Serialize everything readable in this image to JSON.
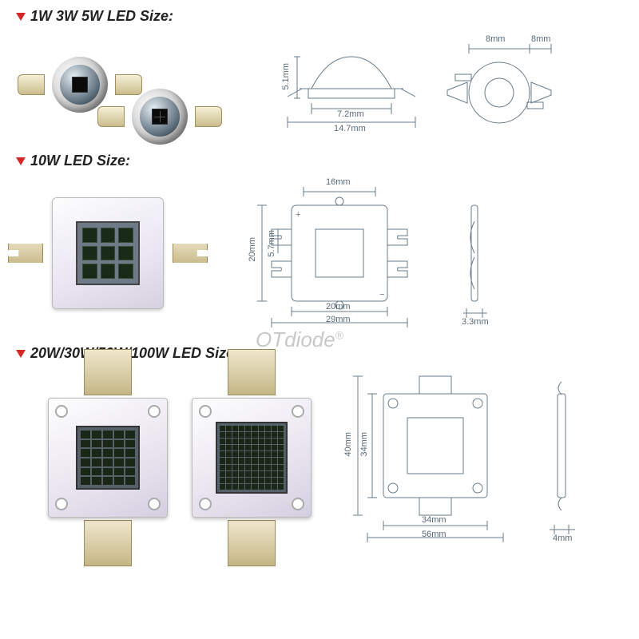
{
  "watermark": "OTdiode",
  "arrow_color": "#d72828",
  "line_color": "#6a7a88",
  "sections": [
    {
      "title": "1W 3W 5W  LED  Size:",
      "dims_small": {
        "side_height": "5.1mm",
        "dome_base": "7.2mm",
        "full_width": "14.7mm",
        "top_ring_outer": "8mm",
        "top_ring_gap": "8mm"
      }
    },
    {
      "title": "10W LED  Size:",
      "dims_10w": {
        "top_width": "16mm",
        "left_height": "20mm",
        "left_inner": "5.7mm",
        "bottom_inner": "20mm",
        "bottom_full": "29mm",
        "side_depth": "3.3mm"
      }
    },
    {
      "title": "20W/30W/50W/100W  LED  Size:",
      "dims_cob": {
        "left_outer": "40mm",
        "left_inner": "34mm",
        "bottom_inner": "34mm",
        "bottom_full": "56mm",
        "side_depth": "4mm"
      }
    }
  ]
}
